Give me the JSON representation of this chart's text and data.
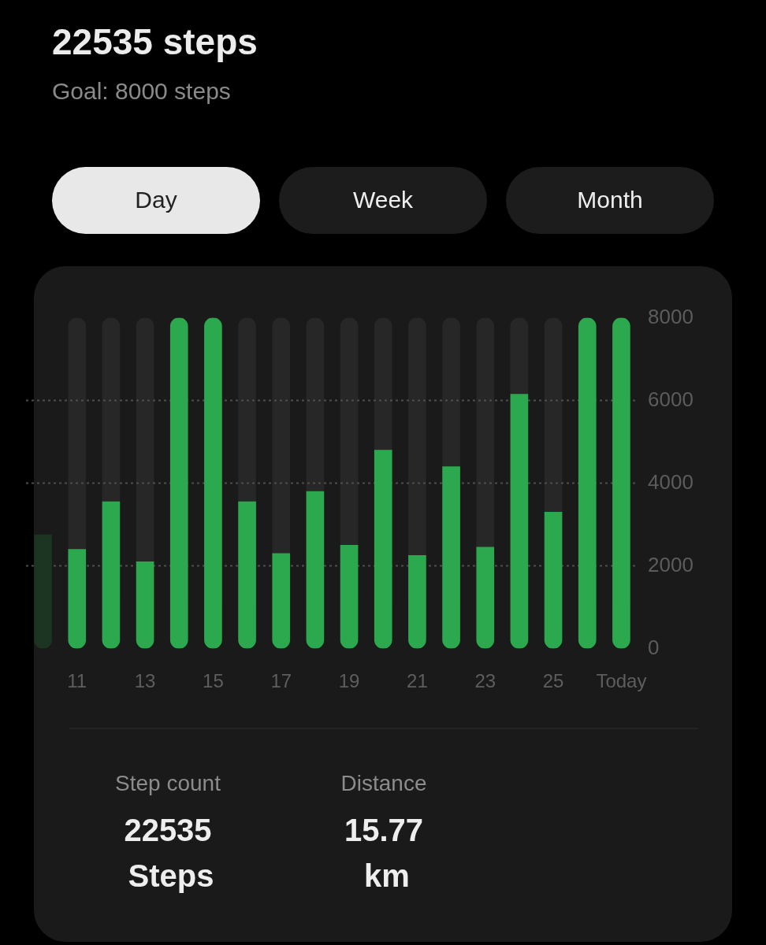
{
  "chart_data": {
    "type": "bar",
    "title": "22535 steps",
    "subtitle": "Goal: 8000 steps",
    "categories": [
      null,
      "11",
      null,
      "13",
      null,
      "15",
      null,
      "17",
      null,
      "19",
      null,
      "21",
      null,
      "23",
      null,
      "25",
      null,
      "Today"
    ],
    "stacked": true,
    "series": [
      {
        "colors": [
          "#1c3523",
          "#2ca84f",
          "#2ca84f",
          "#2ca84f",
          "#2ca84f",
          "#2ca84f",
          "#2ca84f",
          "#2ca84f",
          "#2ca84f",
          "#2ca84f",
          "#2ca84f",
          "#2ca84f",
          "#2ca84f",
          "#2ca84f",
          "#2ca84f",
          "#2ca84f",
          "#2ca84f",
          "#2ca84f"
        ],
        "values": [
          2750,
          2400,
          3550,
          2100,
          8000,
          8000,
          3550,
          2300,
          3800,
          2500,
          4800,
          2250,
          4400,
          2450,
          6150,
          3300,
          8000,
          8000
        ]
      },
      {
        "colors": [
          "#1e1e1e",
          "#272727",
          "#272727",
          "#272727",
          "#272727",
          "#272727",
          "#272727",
          "#272727",
          "#272727",
          "#272727",
          "#272727",
          "#272727",
          "#272727",
          "#272727",
          "#272727",
          "#272727",
          "#272727",
          "#272727"
        ],
        "values": [
          null,
          5600,
          4450,
          5900,
          0,
          0,
          4450,
          5700,
          4200,
          5500,
          3200,
          5750,
          3600,
          5550,
          1850,
          4700,
          0,
          0
        ]
      }
    ],
    "ylim": [
      0,
      8000
    ],
    "yticks": [
      0,
      2000,
      4000,
      6000,
      8000
    ],
    "grid": "y",
    "legend": false,
    "annotations": [
      "Day",
      "Week",
      "Month",
      "Step count",
      "22535",
      "Steps",
      "Distance",
      "15.77",
      "km"
    ]
  }
}
